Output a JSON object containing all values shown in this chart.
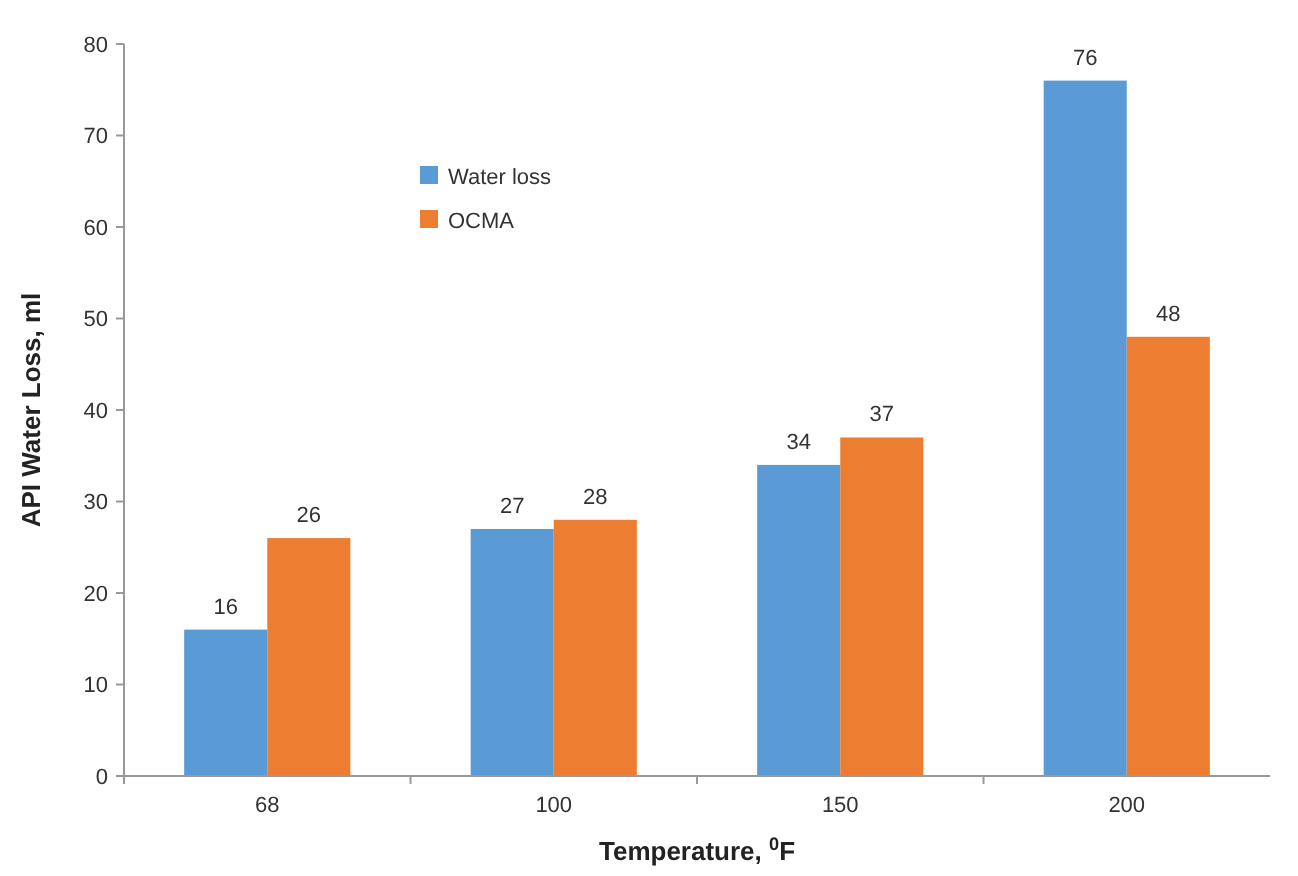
{
  "chart_data": {
    "type": "bar",
    "xlabel": "Temperature, $^{0}$F",
    "ylabel": "API Water Loss, ml",
    "categories": [
      "68",
      "100",
      "150",
      "200"
    ],
    "series": [
      {
        "name": "Water loss",
        "color": "#5b9bd5",
        "values": [
          16,
          27,
          34,
          76
        ]
      },
      {
        "name": "OCMA",
        "color": "#ed7d31",
        "values": [
          26,
          28,
          37,
          48
        ]
      }
    ],
    "ylim": [
      0,
      80
    ],
    "yticks": [
      0,
      10,
      20,
      30,
      40,
      50,
      60,
      70,
      80
    ],
    "data_labels": true,
    "legend": "top left",
    "grid": false
  }
}
